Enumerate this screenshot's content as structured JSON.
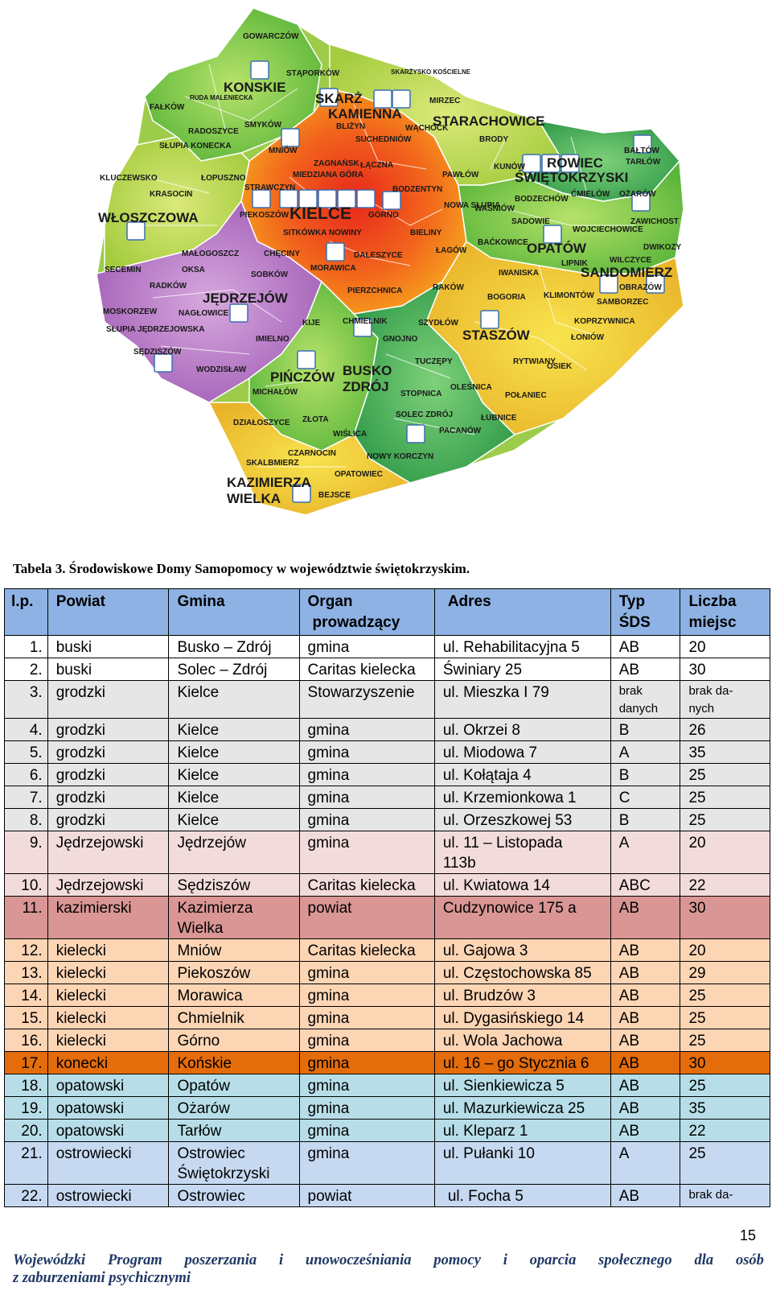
{
  "map": {
    "labels": {
      "konskie": "KONSKIE",
      "skarzysko_k": "SKARŻ",
      "kamienna": "KAMIENNA",
      "starachowice": "STARACHOWICE",
      "ostrowiec1": "ROWIEC",
      "ostrowiec2": "ŚWIĘTOKRZYSKI",
      "wloszczowa": "WŁOSZCZOWA",
      "kielce": "KIELCE",
      "opatow": "OPATÓW",
      "sandomierz": "SANDOMIERZ",
      "jedrzejow": "JĘDRZEJÓW",
      "staszow": "STASZÓW",
      "pinczow": "PIŃCZÓW",
      "busko1": "BUSKO",
      "busko2": "ZDRÓJ",
      "kazimierza1": "KAZIMIERZA",
      "kazimierza2": "WIELKA",
      "gowarczow": "GOWARCZÓW",
      "stapórkow": "STĄPORKÓW",
      "skarzysko_koscielne": "SKARŻYSKO KOŚCIELNE",
      "ruda": "RUDA MALENIECKA",
      "falkow": "FAŁKÓW",
      "mirzec": "MIRZEC",
      "radoszyce": "RADOSZYCE",
      "smykow": "SMYKÓW",
      "blizyn": "BLIŻYN",
      "wachock": "WĄCHOCK",
      "slupia_k": "SŁUPIA KONECKA",
      "mniow": "MNIÓW",
      "suchedniow": "SUCHEDNIÓW",
      "brody": "BRODY",
      "zagnansk": "ZAGNAŃSK",
      "laczna": "ŁĄCZNA",
      "kunow": "KUNÓW",
      "baltow": "BAŁTÓW",
      "tarlow": "TARŁÓW",
      "kluczewsko": "KLUCZEWSKO",
      "lopuszno": "ŁOPUSZNO",
      "strawczyn": "STRAWCZYN",
      "miedziana": "MIEDZIANA GÓRA",
      "bodzentyn": "BODZENTYN",
      "pawlow": "PAWŁÓW",
      "cmielow": "ĆMIELÓW",
      "ozarow": "OŻARÓW",
      "krasocin": "KRASOCIN",
      "piekoszow": "PIEKOSZÓW",
      "gorno": "GÓRNO",
      "nowa_slupia": "NOWA SŁUPIA",
      "wasniow": "WAŚNIÓW",
      "bodzechow": "BODZECHÓW",
      "sadowie": "SADOWIE",
      "zawichost": "ZAWICHOST",
      "wojciechowice": "WOJCIECHOWICE",
      "sitkowka": "SITKÓWKA NOWINY",
      "bieliny": "BIELINY",
      "bakowice": "BAĆKOWICE",
      "dwikozy": "DWIKOZY",
      "secemin": "SECEMIN",
      "malogoszcz": "MAŁOGOSZCZ",
      "checiny": "CHĘCINY",
      "daleszyce": "DALESZYCE",
      "lagow": "ŁAGÓW",
      "lipnik": "LIPNIK",
      "wilczyce": "WILCZYCE",
      "oksa": "OKSA",
      "sobkow": "SOBKÓW",
      "morawica": "MORAWICA",
      "iwaniska": "IWANISKA",
      "radkow": "RADKÓW",
      "pierzchnica": "PIERZCHNICA",
      "rakow": "RAKÓW",
      "bogoria": "BOGORIA",
      "klimontow": "KLIMONTÓW",
      "obrazow": "OBRAZÓW",
      "samborzec": "SAMBORZEC",
      "moskorzew": "MOSKORZEW",
      "naglowice": "NAGŁOWICE",
      "kije": "KIJE",
      "chmielnik": "CHMIELNIK",
      "szydlow": "SZYDŁÓW",
      "koprzywnica": "KOPRZYWNICA",
      "slupia_j": "SŁUPIA JĘDRZEJOWSKA",
      "imielno": "IMIELNO",
      "gnojno": "GNOJNO",
      "loniow": "ŁONIÓW",
      "sedziszow": "SĘDZISZÓW",
      "tuczepy": "TUCZĘPY",
      "rytwiany": "RYTWIANY",
      "osiek": "OSIEK",
      "wodzislaw": "WODZISŁAW",
      "michalow": "MICHAŁÓW",
      "stopnica": "STOPNICA",
      "olesnica": "OLEŚNICA",
      "polaniec": "POŁANIEC",
      "dzialoszyce": "DZIAŁOSZYCE",
      "zlota": "ZŁOTA",
      "solec": "SOLEC ZDRÓJ",
      "lubnice": "ŁUBNICE",
      "wislica": "WIŚLICA",
      "pacanow": "PACANÓW",
      "czarnocin": "CZARNOCIN",
      "nowy_korczyn": "NOWY KORCZYN",
      "skalbmierz": "SKALBMIERZ",
      "opatowiec": "OPATOWIEC",
      "bejsce": "BEJSCE"
    }
  },
  "caption": "Tabela 3. Środowiskowe Domy Samopomocy w województwie świętokrzyskim.",
  "table": {
    "headers": {
      "lp": "l.p.",
      "powiat": "Powiat",
      "gmina": "Gmina",
      "organ1": "Organ",
      "organ2": "prowadzący",
      "adres": "Adres",
      "typ1": "Typ",
      "typ2": "ŚDS",
      "liczba1": "Liczba",
      "liczba2": "miejsc"
    },
    "rows": [
      {
        "lp": "1.",
        "powiat": "buski",
        "gmina": "Busko – Zdrój",
        "organ": "gmina",
        "adres": "ul. Rehabilitacyjna 5",
        "typ": "AB",
        "liczba": "20"
      },
      {
        "lp": "2.",
        "powiat": "buski",
        "gmina": "Solec – Zdrój",
        "organ": "Caritas kielecka",
        "adres": "Świniary 25",
        "typ": "AB",
        "liczba": "30"
      },
      {
        "lp": "3.",
        "powiat": "grodzki",
        "gmina": "Kielce",
        "organ": "Stowarzyszenie",
        "adres": "ul. Mieszka I 79",
        "typ1": "brak",
        "typ2": "danych",
        "liczba1": "brak da-",
        "liczba2": "nych"
      },
      {
        "lp": "4.",
        "powiat": "grodzki",
        "gmina": "Kielce",
        "organ": "gmina",
        "adres": "ul. Okrzei 8",
        "typ": "B",
        "liczba": "26"
      },
      {
        "lp": "5.",
        "powiat": "grodzki",
        "gmina": "Kielce",
        "organ": "gmina",
        "adres": "ul. Miodowa 7",
        "typ": "A",
        "liczba": "35"
      },
      {
        "lp": "6.",
        "powiat": "grodzki",
        "gmina": "Kielce",
        "organ": "gmina",
        "adres": "ul. Kołątaja 4",
        "typ": "B",
        "liczba": "25"
      },
      {
        "lp": "7.",
        "powiat": "grodzki",
        "gmina": "Kielce",
        "organ": "gmina",
        "adres": "ul. Krzemionkowa 1",
        "typ": "C",
        "liczba": "25"
      },
      {
        "lp": "8.",
        "powiat": "grodzki",
        "gmina": "Kielce",
        "organ": "gmina",
        "adres": "ul. Orzeszkowej 53",
        "typ": "B",
        "liczba": "25"
      },
      {
        "lp": "9.",
        "powiat": "Jędrzejowski",
        "gmina": "Jędrzejów",
        "organ": "gmina",
        "adres1": "ul. 11 – Listopada",
        "adres2": "113b",
        "typ": "A",
        "liczba": "20"
      },
      {
        "lp": "10.",
        "powiat": "Jędrzejowski",
        "gmina": "Sędziszów",
        "organ": "Caritas kielecka",
        "adres": "ul. Kwiatowa 14",
        "typ": "ABC",
        "liczba": "22"
      },
      {
        "lp": "11.",
        "powiat": "kazimierski",
        "gmina1": "Kazimierza",
        "gmina2": "Wielka",
        "organ": "powiat",
        "adres": "Cudzynowice 175 a",
        "typ": "AB",
        "liczba": "30"
      },
      {
        "lp": "12.",
        "powiat": "kielecki",
        "gmina": "Mniów",
        "organ": "Caritas kielecka",
        "adres": "ul. Gajowa 3",
        "typ": "AB",
        "liczba": "20"
      },
      {
        "lp": "13.",
        "powiat": "kielecki",
        "gmina": "Piekoszów",
        "organ": "gmina",
        "adres": "ul. Częstochowska 85",
        "typ": "AB",
        "liczba": "29"
      },
      {
        "lp": "14.",
        "powiat": "kielecki",
        "gmina": "Morawica",
        "organ": "gmina",
        "adres": "ul. Brudzów 3",
        "typ": "AB",
        "liczba": "25"
      },
      {
        "lp": "15.",
        "powiat": "kielecki",
        "gmina": "Chmielnik",
        "organ": "gmina",
        "adres": "ul. Dygasińskiego 14",
        "typ": "AB",
        "liczba": "25"
      },
      {
        "lp": "16.",
        "powiat": "kielecki",
        "gmina": "Górno",
        "organ": "gmina",
        "adres": "ul. Wola Jachowa",
        "typ": "AB",
        "liczba": "25"
      },
      {
        "lp": "17.",
        "powiat": "konecki",
        "gmina": "Końskie",
        "organ": "gmina",
        "adres": "ul. 16 – go Stycznia 6",
        "typ": "AB",
        "liczba": "30"
      },
      {
        "lp": "18.",
        "powiat": "opatowski",
        "gmina": "Opatów",
        "organ": "gmina",
        "adres": "ul. Sienkiewicza 5",
        "typ": "AB",
        "liczba": "25"
      },
      {
        "lp": "19.",
        "powiat": "opatowski",
        "gmina": "Ożarów",
        "organ": "gmina",
        "adres": "ul. Mazurkiewicza 25",
        "typ": "AB",
        "liczba": "35"
      },
      {
        "lp": "20.",
        "powiat": "opatowski",
        "gmina": "Tarłów",
        "organ": "gmina",
        "adres": "ul. Kleparz 1",
        "typ": "AB",
        "liczba": "22"
      },
      {
        "lp": "21.",
        "powiat": "ostrowiecki",
        "gmina1": "Ostrowiec",
        "gmina2": "Świętokrzyski",
        "organ": "gmina",
        "adres": "ul. Pułanki 10",
        "typ": "A",
        "liczba": "25"
      },
      {
        "lp": "22.",
        "powiat": "ostrowiecki",
        "gmina": "Ostrowiec",
        "organ": "powiat",
        "adres": "ul. Focha 5",
        "typ": "AB",
        "liczba": "brak da-"
      }
    ]
  },
  "page_number": "15",
  "footer": {
    "words": [
      "Wojewódzki",
      "Program",
      "poszerzania",
      "i",
      "unowocześniania",
      "pomocy",
      "i",
      "oparcia",
      "społecznego",
      "dla",
      "osób"
    ],
    "line2": "z zaburzeniami psychicznymi"
  },
  "colors": {
    "header": "#8eb2e3",
    "grodzki": "#e6e6e6",
    "jedrzejowski": "#f2dcdb",
    "kazimierski": "#d99694",
    "kielecki": "#fcd5b5",
    "konecki": "#e46c0a",
    "opatowski": "#b7dee8",
    "ostrowiecki": "#c6d9f1"
  }
}
